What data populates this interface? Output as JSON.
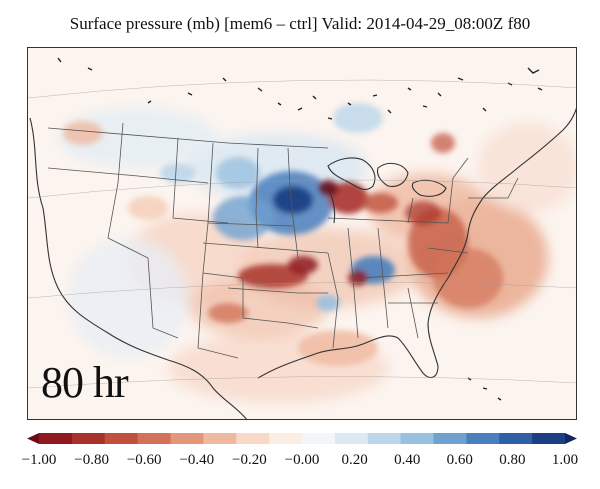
{
  "title": "Surface pressure (mb) [mem6 – ctrl] Valid: 2014-04-29_08:00Z f80",
  "forecast_label": "80 hr",
  "colorbar": {
    "colors": [
      "#6b0a14",
      "#8e1a1f",
      "#a8322b",
      "#c0523d",
      "#d27359",
      "#e3977a",
      "#efb9a0",
      "#f8d8c7",
      "#fdeee4",
      "#f3f6f8",
      "#dde9f2",
      "#bcd6ea",
      "#98c0df",
      "#6fa1cf",
      "#4a7fbd",
      "#2f5fa6",
      "#1b3f82",
      "#0f2860"
    ],
    "ticks": [
      "−1.00",
      "−0.80",
      "−0.60",
      "−0.40",
      "−0.20",
      "−0.00",
      "0.20",
      "0.40",
      "0.60",
      "0.80",
      "1.00"
    ]
  }
}
